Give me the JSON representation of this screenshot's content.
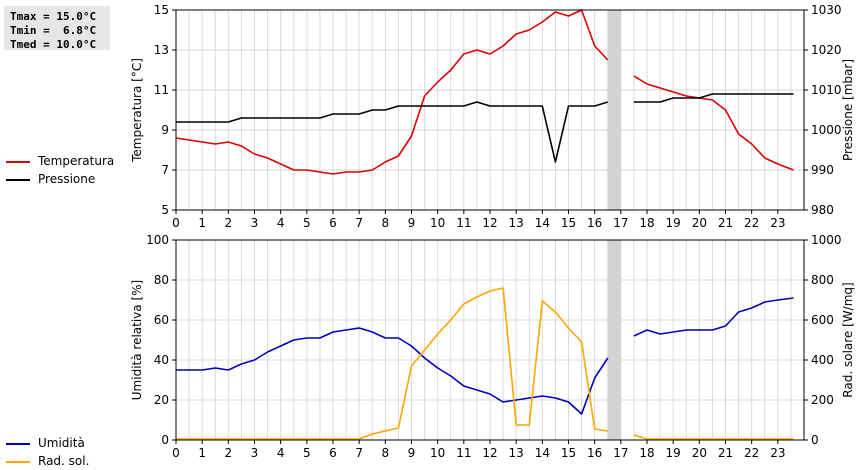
{
  "stats": {
    "lines": [
      "Tmax = 15.0°C",
      "Tmin =  6.8°C",
      "Tmed = 10.0°C"
    ]
  },
  "chart_data": [
    {
      "type": "line",
      "ylabel_left": "Temperatura [°C]",
      "ylabel_right": "Pressione [mbar]",
      "ylim_left": [
        5,
        15
      ],
      "ylim_right": [
        980,
        1030
      ],
      "yticks_left": [
        5,
        7,
        9,
        11,
        13,
        15
      ],
      "yticks_right": [
        980,
        990,
        1000,
        1010,
        1020,
        1030
      ],
      "xlim": [
        0,
        24
      ],
      "xticks": [
        0,
        1,
        2,
        3,
        4,
        5,
        6,
        7,
        8,
        9,
        10,
        11,
        12,
        13,
        14,
        15,
        16,
        17,
        18,
        19,
        20,
        21,
        22,
        23
      ],
      "grid": true,
      "gap_x": [
        16.5,
        17.0
      ],
      "legend_position": "left",
      "series": [
        {
          "name": "Temperatura",
          "axis": "left",
          "color": "#dd0000",
          "points": [
            [
              0,
              8.6
            ],
            [
              0.5,
              8.5
            ],
            [
              1,
              8.4
            ],
            [
              1.5,
              8.3
            ],
            [
              2,
              8.4
            ],
            [
              2.5,
              8.2
            ],
            [
              3,
              7.8
            ],
            [
              3.5,
              7.6
            ],
            [
              4,
              7.3
            ],
            [
              4.5,
              7.0
            ],
            [
              5,
              7.0
            ],
            [
              5.5,
              6.9
            ],
            [
              6,
              6.8
            ],
            [
              6.5,
              6.9
            ],
            [
              7,
              6.9
            ],
            [
              7.5,
              7.0
            ],
            [
              8,
              7.4
            ],
            [
              8.5,
              7.7
            ],
            [
              9,
              8.7
            ],
            [
              9.5,
              10.7
            ],
            [
              10,
              11.4
            ],
            [
              10.5,
              12.0
            ],
            [
              11,
              12.8
            ],
            [
              11.5,
              13.0
            ],
            [
              12,
              12.8
            ],
            [
              12.5,
              13.2
            ],
            [
              13,
              13.8
            ],
            [
              13.5,
              14.0
            ],
            [
              14,
              14.4
            ],
            [
              14.5,
              14.9
            ],
            [
              15,
              14.7
            ],
            [
              15.5,
              15.0
            ],
            [
              16,
              13.2
            ],
            [
              16.5,
              12.5
            ],
            null,
            [
              17.5,
              11.7
            ],
            [
              18,
              11.3
            ],
            [
              18.5,
              11.1
            ],
            [
              19,
              10.9
            ],
            [
              19.5,
              10.7
            ],
            [
              20,
              10.6
            ],
            [
              20.5,
              10.5
            ],
            [
              21,
              10.0
            ],
            [
              21.5,
              8.8
            ],
            [
              22,
              8.3
            ],
            [
              22.5,
              7.6
            ],
            [
              23,
              7.3
            ],
            [
              23.6,
              7.0
            ]
          ]
        },
        {
          "name": "Pressione",
          "axis": "right",
          "color": "#000000",
          "points": [
            [
              0,
              1002
            ],
            [
              0.5,
              1002
            ],
            [
              1,
              1002
            ],
            [
              1.5,
              1002
            ],
            [
              2,
              1002
            ],
            [
              2.5,
              1003
            ],
            [
              3,
              1003
            ],
            [
              3.5,
              1003
            ],
            [
              4,
              1003
            ],
            [
              4.5,
              1003
            ],
            [
              5,
              1003
            ],
            [
              5.5,
              1003
            ],
            [
              6,
              1004
            ],
            [
              6.5,
              1004
            ],
            [
              7,
              1004
            ],
            [
              7.5,
              1005
            ],
            [
              8,
              1005
            ],
            [
              8.5,
              1006
            ],
            [
              9,
              1006
            ],
            [
              9.5,
              1006
            ],
            [
              10,
              1006
            ],
            [
              10.5,
              1006
            ],
            [
              11,
              1006
            ],
            [
              11.5,
              1007
            ],
            [
              12,
              1006
            ],
            [
              12.5,
              1006
            ],
            [
              13,
              1006
            ],
            [
              13.5,
              1006
            ],
            [
              14,
              1006
            ],
            [
              14.5,
              992
            ],
            [
              15,
              1006
            ],
            [
              15.5,
              1006
            ],
            [
              16,
              1006
            ],
            [
              16.5,
              1007
            ],
            null,
            [
              17.5,
              1007
            ],
            [
              18,
              1007
            ],
            [
              18.5,
              1007
            ],
            [
              19,
              1008
            ],
            [
              19.5,
              1008
            ],
            [
              20,
              1008
            ],
            [
              20.5,
              1009
            ],
            [
              21,
              1009
            ],
            [
              21.5,
              1009
            ],
            [
              22,
              1009
            ],
            [
              22.5,
              1009
            ],
            [
              23,
              1009
            ],
            [
              23.6,
              1009
            ]
          ]
        }
      ]
    },
    {
      "type": "line",
      "ylabel_left": "Umidità relativa [%]",
      "ylabel_right": "Rad. solare [W/mq]",
      "ylim_left": [
        0,
        100
      ],
      "ylim_right": [
        0,
        1000
      ],
      "yticks_left": [
        0,
        20,
        40,
        60,
        80,
        100
      ],
      "yticks_right": [
        0,
        200,
        400,
        600,
        800,
        1000
      ],
      "xlim": [
        0,
        24
      ],
      "xticks": [
        0,
        1,
        2,
        3,
        4,
        5,
        6,
        7,
        8,
        9,
        10,
        11,
        12,
        13,
        14,
        15,
        16,
        17,
        18,
        19,
        20,
        21,
        22,
        23
      ],
      "grid": true,
      "gap_x": [
        16.5,
        17.0
      ],
      "legend_position": "left",
      "series": [
        {
          "name": "Umidità",
          "axis": "left",
          "color": "#0000bb",
          "points": [
            [
              0,
              35
            ],
            [
              0.5,
              35
            ],
            [
              1,
              35
            ],
            [
              1.5,
              36
            ],
            [
              2,
              35
            ],
            [
              2.5,
              38
            ],
            [
              3,
              40
            ],
            [
              3.5,
              44
            ],
            [
              4,
              47
            ],
            [
              4.5,
              50
            ],
            [
              5,
              51
            ],
            [
              5.5,
              51
            ],
            [
              6,
              54
            ],
            [
              6.5,
              55
            ],
            [
              7,
              56
            ],
            [
              7.5,
              54
            ],
            [
              8,
              51
            ],
            [
              8.5,
              51
            ],
            [
              9,
              47
            ],
            [
              9.5,
              41
            ],
            [
              10,
              36
            ],
            [
              10.5,
              32
            ],
            [
              11,
              27
            ],
            [
              11.5,
              25
            ],
            [
              12,
              23
            ],
            [
              12.5,
              19
            ],
            [
              13,
              20
            ],
            [
              13.5,
              21
            ],
            [
              14,
              22
            ],
            [
              14.5,
              21
            ],
            [
              15,
              19
            ],
            [
              15.5,
              13
            ],
            [
              16,
              31
            ],
            [
              16.5,
              41
            ],
            null,
            [
              17.5,
              52
            ],
            [
              18,
              55
            ],
            [
              18.5,
              53
            ],
            [
              19,
              54
            ],
            [
              19.5,
              55
            ],
            [
              20,
              55
            ],
            [
              20.5,
              55
            ],
            [
              21,
              57
            ],
            [
              21.5,
              64
            ],
            [
              22,
              66
            ],
            [
              22.5,
              69
            ],
            [
              23,
              70
            ],
            [
              23.6,
              71
            ]
          ]
        },
        {
          "name": "Rad. sol.",
          "axis": "right",
          "color": "#ffa500",
          "points": [
            [
              0,
              5
            ],
            [
              0.5,
              5
            ],
            [
              1,
              5
            ],
            [
              1.5,
              5
            ],
            [
              2,
              5
            ],
            [
              2.5,
              5
            ],
            [
              3,
              5
            ],
            [
              3.5,
              5
            ],
            [
              4,
              5
            ],
            [
              4.5,
              5
            ],
            [
              5,
              5
            ],
            [
              5.5,
              5
            ],
            [
              6,
              5
            ],
            [
              6.5,
              5
            ],
            [
              7,
              5
            ],
            [
              7.5,
              30
            ],
            [
              8,
              45
            ],
            [
              8.5,
              60
            ],
            [
              9,
              370
            ],
            [
              9.5,
              450
            ],
            [
              10,
              530
            ],
            [
              10.5,
              600
            ],
            [
              11,
              680
            ],
            [
              11.5,
              715
            ],
            [
              12,
              745
            ],
            [
              12.5,
              760
            ],
            [
              13,
              75
            ],
            [
              13.5,
              75
            ],
            [
              14,
              695
            ],
            [
              14.5,
              640
            ],
            [
              15,
              560
            ],
            [
              15.5,
              490
            ],
            [
              16,
              55
            ],
            [
              16.5,
              45
            ],
            null,
            [
              17.5,
              25
            ],
            [
              18,
              5
            ],
            [
              18.5,
              5
            ],
            [
              19,
              5
            ],
            [
              19.5,
              5
            ],
            [
              20,
              5
            ],
            [
              20.5,
              5
            ],
            [
              21,
              5
            ],
            [
              21.5,
              5
            ],
            [
              22,
              5
            ],
            [
              22.5,
              5
            ],
            [
              23,
              5
            ],
            [
              23.6,
              5
            ]
          ]
        }
      ]
    }
  ]
}
